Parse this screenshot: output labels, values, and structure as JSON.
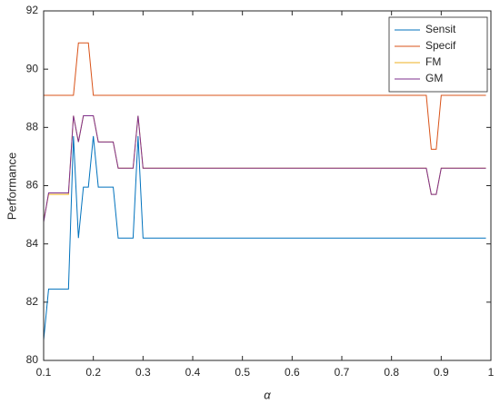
{
  "chart_data": {
    "type": "line",
    "xlabel": "α",
    "ylabel": "Performance",
    "x": [
      0.1,
      0.11,
      0.15,
      0.16,
      0.17,
      0.18,
      0.19,
      0.2,
      0.21,
      0.24,
      0.25,
      0.28,
      0.29,
      0.3,
      0.87,
      0.88,
      0.89,
      0.9,
      0.99
    ],
    "series": [
      {
        "name": "Sensit",
        "color": "#0072bd",
        "values": [
          80.7,
          82.45,
          82.45,
          87.7,
          84.2,
          85.95,
          85.95,
          87.7,
          85.95,
          85.95,
          84.2,
          84.2,
          87.7,
          84.2,
          84.2,
          84.2,
          84.2,
          84.2,
          84.2
        ]
      },
      {
        "name": "Specif",
        "color": "#d95319",
        "values": [
          89.1,
          89.1,
          89.1,
          89.1,
          90.9,
          90.9,
          90.9,
          89.1,
          89.1,
          89.1,
          89.1,
          89.1,
          89.1,
          89.1,
          89.1,
          87.25,
          87.25,
          89.1,
          89.1
        ]
      },
      {
        "name": "FM",
        "color": "#edb120",
        "values": [
          84.8,
          85.7,
          85.7,
          88.4,
          87.5,
          88.4,
          88.4,
          88.4,
          87.5,
          87.5,
          86.6,
          86.6,
          88.4,
          86.6,
          86.6,
          85.7,
          85.7,
          86.6,
          86.6
        ]
      },
      {
        "name": "GM",
        "color": "#7e2f8e",
        "values": [
          84.75,
          85.75,
          85.75,
          88.4,
          87.5,
          88.4,
          88.4,
          88.4,
          87.5,
          87.5,
          86.6,
          86.6,
          88.4,
          86.6,
          86.6,
          85.7,
          85.7,
          86.6,
          86.6
        ]
      }
    ],
    "xlim": [
      0.1,
      1
    ],
    "xticks": [
      0.1,
      0.2,
      0.3,
      0.4,
      0.5,
      0.6,
      0.7,
      0.8,
      0.9,
      1
    ],
    "ylim": [
      80,
      92
    ],
    "yticks": [
      80,
      82,
      84,
      86,
      88,
      90,
      92
    ],
    "legend": "top-right",
    "grid": false
  }
}
